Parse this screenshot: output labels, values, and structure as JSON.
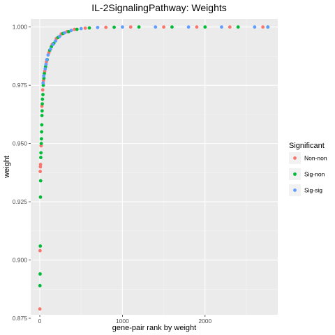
{
  "chart_data": {
    "type": "scatter",
    "title": "IL-2SignalingPathway: Weights",
    "xlabel": "gene-pair rank by weight",
    "ylabel": "weight",
    "xlim": [
      -110,
      2880
    ],
    "ylim": [
      0.8765,
      1.0035
    ],
    "xticks": [
      0,
      1000,
      2000
    ],
    "xtick_labels": [
      "0",
      "1000",
      "2000"
    ],
    "yticks": [
      0.875,
      0.9,
      0.925,
      0.95,
      0.975,
      1.0
    ],
    "ytick_labels": [
      "0.875",
      "0.900",
      "0.925",
      "0.950",
      "0.975",
      "1.000"
    ],
    "grid": true,
    "legend": {
      "title": "Significant",
      "placement": "right"
    },
    "series": [
      {
        "name": "Non-non",
        "color": "#F8766D",
        "points": [
          [
            1,
            0.879
          ],
          [
            3,
            0.904
          ],
          [
            5,
            0.938
          ],
          [
            7,
            0.94
          ],
          [
            9,
            0.941
          ],
          [
            16,
            0.949
          ],
          [
            25,
            0.966
          ],
          [
            35,
            0.973
          ],
          [
            45,
            0.977
          ],
          [
            60,
            0.981
          ],
          [
            80,
            0.985
          ],
          [
            110,
            0.989
          ],
          [
            150,
            0.9925
          ],
          [
            200,
            0.995
          ],
          [
            260,
            0.997
          ],
          [
            330,
            0.998
          ],
          [
            420,
            0.999
          ],
          [
            550,
            0.9995
          ],
          [
            800,
            0.99985
          ],
          [
            1100,
            1.0
          ],
          [
            1500,
            1.0
          ],
          [
            1900,
            1.0
          ],
          [
            2300,
            1.0
          ],
          [
            2700,
            1.0
          ]
        ]
      },
      {
        "name": "Sig-non",
        "color": "#00BA38",
        "points": [
          [
            2,
            0.889
          ],
          [
            4,
            0.894
          ],
          [
            6,
            0.906
          ],
          [
            8,
            0.927
          ],
          [
            10,
            0.934
          ],
          [
            12,
            0.944
          ],
          [
            14,
            0.946
          ],
          [
            18,
            0.95
          ],
          [
            20,
            0.952
          ],
          [
            22,
            0.955
          ],
          [
            24,
            0.958
          ],
          [
            26,
            0.962
          ],
          [
            28,
            0.964
          ],
          [
            30,
            0.967
          ],
          [
            32,
            0.969
          ],
          [
            38,
            0.971
          ],
          [
            42,
            0.975
          ],
          [
            50,
            0.978
          ],
          [
            55,
            0.98
          ],
          [
            70,
            0.983
          ],
          [
            90,
            0.986
          ],
          [
            120,
            0.99
          ],
          [
            140,
            0.9915
          ],
          [
            170,
            0.993
          ],
          [
            220,
            0.9955
          ],
          [
            280,
            0.9972
          ],
          [
            350,
            0.998
          ],
          [
            450,
            0.999
          ],
          [
            600,
            0.9996
          ],
          [
            900,
            0.9999
          ],
          [
            1200,
            1.0
          ],
          [
            1600,
            1.0
          ],
          [
            2000,
            1.0
          ],
          [
            2400,
            1.0
          ],
          [
            2760,
            1.0
          ]
        ]
      },
      {
        "name": "Sig-sig",
        "color": "#619CFF",
        "points": [
          [
            40,
            0.976
          ],
          [
            48,
            0.979
          ],
          [
            65,
            0.982
          ],
          [
            75,
            0.984
          ],
          [
            85,
            0.986
          ],
          [
            100,
            0.988
          ],
          [
            130,
            0.9905
          ],
          [
            160,
            0.9925
          ],
          [
            190,
            0.994
          ],
          [
            240,
            0.996
          ],
          [
            300,
            0.9975
          ],
          [
            380,
            0.9985
          ],
          [
            500,
            0.9993
          ],
          [
            700,
            0.9998
          ],
          [
            1000,
            1.0
          ],
          [
            1400,
            1.0
          ],
          [
            1800,
            1.0
          ],
          [
            2200,
            1.0
          ],
          [
            2600,
            1.0
          ],
          [
            2760,
            1.0
          ]
        ]
      }
    ]
  }
}
